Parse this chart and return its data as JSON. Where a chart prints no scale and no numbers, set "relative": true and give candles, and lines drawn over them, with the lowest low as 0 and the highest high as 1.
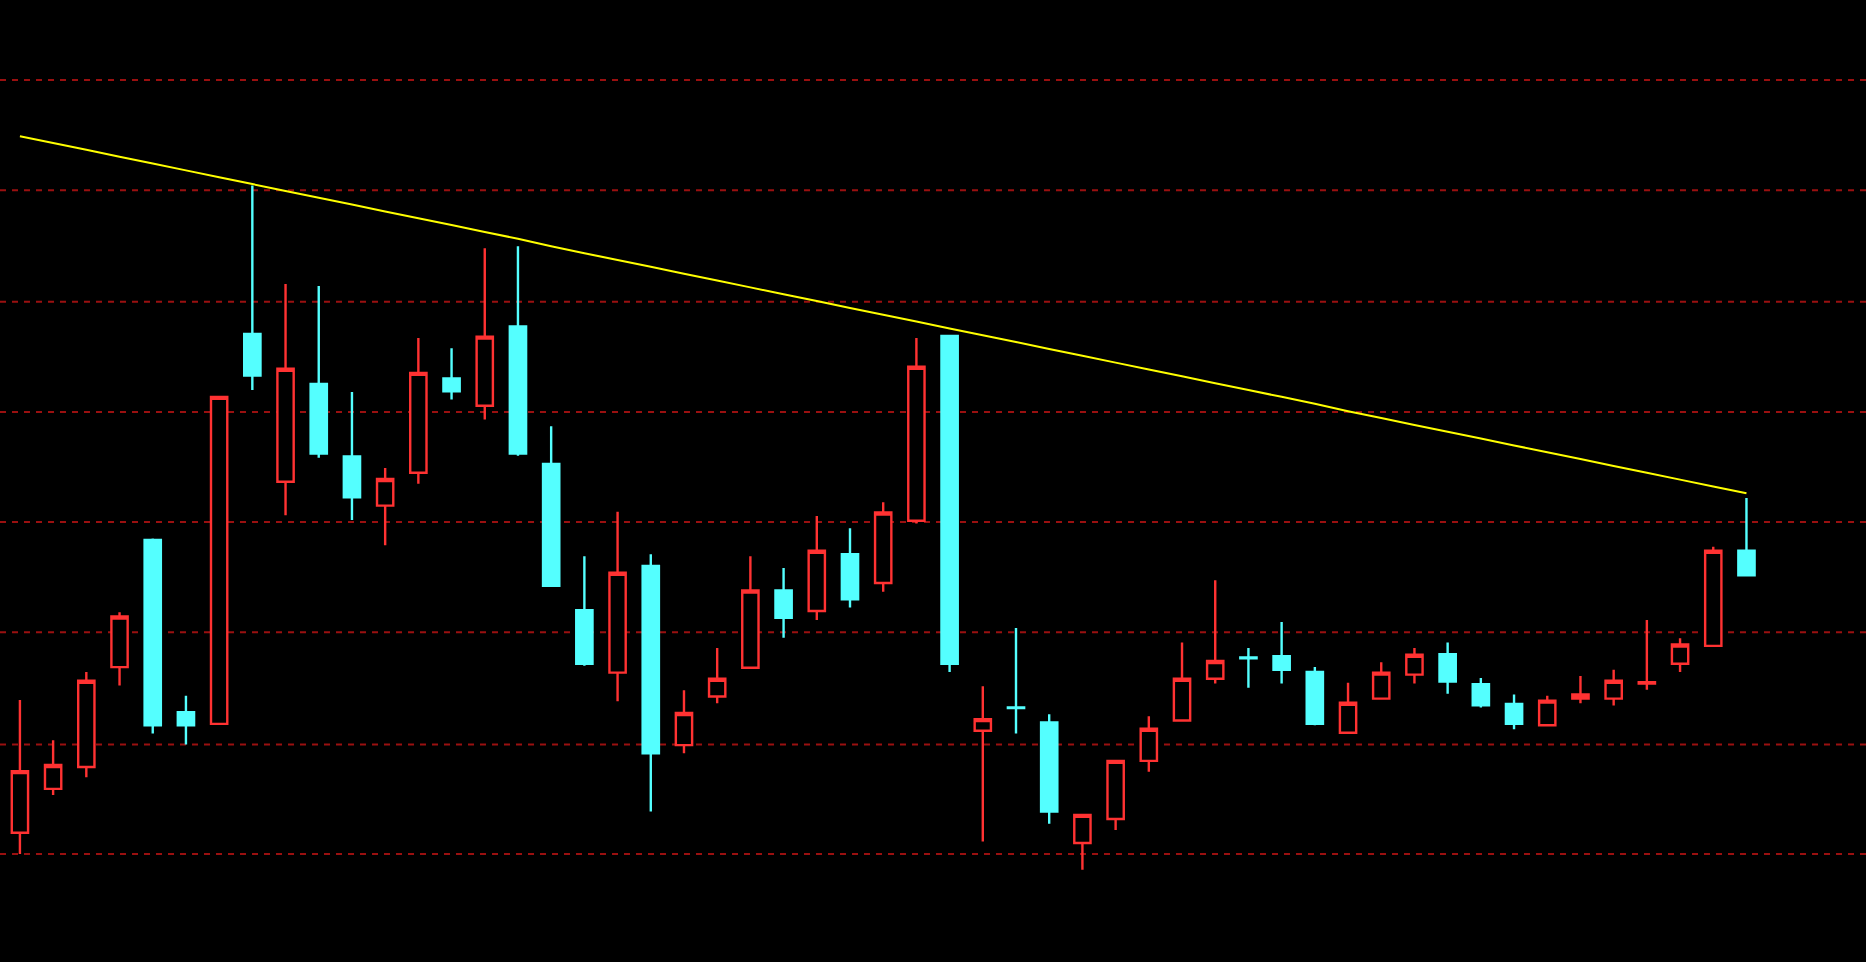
{
  "chart_data": {
    "type": "candlestick",
    "relative": true,
    "tick_labels": false,
    "ref_lines": [
      {
        "axis": "y",
        "value": 1.154,
        "color": "#9a1010",
        "line_style": "dotted"
      },
      {
        "axis": "y",
        "value": 0.993,
        "color": "#9a1010",
        "line_style": "dotted"
      },
      {
        "axis": "y",
        "value": 0.83,
        "color": "#9a1010",
        "line_style": "dotted"
      },
      {
        "axis": "y",
        "value": 0.669,
        "color": "#9a1010",
        "line_style": "dotted"
      },
      {
        "axis": "y",
        "value": 0.508,
        "color": "#9a1010",
        "line_style": "dotted"
      },
      {
        "axis": "y",
        "value": 0.347,
        "color": "#9a1010",
        "line_style": "dotted"
      },
      {
        "axis": "y",
        "value": 0.183,
        "color": "#9a1010",
        "line_style": "dotted"
      },
      {
        "axis": "y",
        "value": 0.023,
        "color": "#9a1010",
        "line_style": "dotted"
      }
    ],
    "categories": [
      null,
      null,
      null,
      null,
      null,
      null,
      null,
      null,
      null,
      null,
      null,
      null,
      null,
      null,
      null,
      null,
      null,
      null,
      null,
      null,
      null,
      null,
      null,
      null,
      null,
      null,
      null,
      null,
      null,
      null,
      null,
      null,
      null,
      null,
      null,
      null,
      null,
      null,
      null,
      null,
      null,
      null,
      null,
      null,
      null,
      null,
      null,
      null,
      null,
      null,
      null,
      null,
      null
    ],
    "series": [
      {
        "ohlc": [
          [
            0.054,
            0.248,
            0.023,
            0.144
          ],
          [
            0.118,
            0.189,
            0.109,
            0.153
          ],
          [
            0.15,
            0.289,
            0.135,
            0.276
          ],
          [
            0.296,
            0.376,
            0.269,
            0.37
          ],
          [
            0.482,
            0.484,
            0.199,
            0.211
          ],
          [
            0.23,
            0.254,
            0.183,
            0.211
          ],
          [
            0.213,
            0.691,
            0.213,
            0.691
          ],
          [
            0.783,
            1,
            0.701,
            0.722
          ],
          [
            0.567,
            0.856,
            0.518,
            0.732
          ],
          [
            0.71,
            0.853,
            0.602,
            0.608
          ],
          [
            0.604,
            0.698,
            0.511,
            0.544
          ],
          [
            0.532,
            0.587,
            0.474,
            0.571
          ],
          [
            0.58,
            0.777,
            0.564,
            0.726
          ],
          [
            0.718,
            0.762,
            0.687,
            0.699
          ],
          [
            0.678,
            0.908,
            0.658,
            0.779
          ],
          [
            0.794,
            0.911,
            0.605,
            0.608
          ],
          [
            0.593,
            0.648,
            0.415,
            0.415
          ],
          [
            0.379,
            0.458,
            0.298,
            0.301
          ],
          [
            0.288,
            0.523,
            0.246,
            0.434
          ],
          [
            0.444,
            0.461,
            0.085,
            0.17
          ],
          [
            0.182,
            0.262,
            0.17,
            0.229
          ],
          [
            0.253,
            0.324,
            0.243,
            0.279
          ],
          [
            0.295,
            0.458,
            0.295,
            0.408
          ],
          [
            0.408,
            0.441,
            0.339,
            0.368
          ],
          [
            0.378,
            0.517,
            0.365,
            0.466
          ],
          [
            0.461,
            0.499,
            0.383,
            0.395
          ],
          [
            0.419,
            0.537,
            0.406,
            0.522
          ],
          [
            0.51,
            0.777,
            0.506,
            0.735
          ],
          [
            0.78,
            0.78,
            0.289,
            0.301
          ],
          [
            0.203,
            0.268,
            0.041,
            0.22
          ],
          [
            0.237,
            0.353,
            0.199,
            0.236
          ],
          [
            0.215,
            0.227,
            0.067,
            0.085
          ],
          [
            0.039,
            0.08,
            0,
            0.08
          ],
          [
            0.074,
            0.159,
            0.058,
            0.159
          ],
          [
            0.159,
            0.224,
            0.143,
            0.206
          ],
          [
            0.218,
            0.332,
            0.218,
            0.279
          ],
          [
            0.279,
            0.423,
            0.272,
            0.305
          ],
          [
            0.31,
            0.324,
            0.266,
            0.309
          ],
          [
            0.312,
            0.362,
            0.272,
            0.292
          ],
          [
            0.289,
            0.296,
            0.211,
            0.213
          ],
          [
            0.2,
            0.273,
            0.199,
            0.244
          ],
          [
            0.25,
            0.303,
            0.25,
            0.288
          ],
          [
            0.285,
            0.324,
            0.272,
            0.314
          ],
          [
            0.315,
            0.332,
            0.257,
            0.275
          ],
          [
            0.271,
            0.28,
            0.237,
            0.24
          ],
          [
            0.242,
            0.256,
            0.205,
            0.213
          ],
          [
            0.211,
            0.254,
            0.211,
            0.247
          ],
          [
            0.25,
            0.283,
            0.243,
            0.256
          ],
          [
            0.25,
            0.292,
            0.24,
            0.276
          ],
          [
            0.272,
            0.365,
            0.263,
            0.274
          ],
          [
            0.301,
            0.338,
            0.289,
            0.329
          ],
          [
            0.327,
            0.472,
            0.327,
            0.466
          ],
          [
            0.466,
            0.543,
            0.43,
            0.43
          ]
        ],
        "colors": [
          "#ff3232",
          "#ff3232",
          "#ff3232",
          "#ff3232",
          "#54ffff",
          "#54ffff",
          "#ff3232",
          "#54ffff",
          "#ff3232",
          "#54ffff",
          "#54ffff",
          "#ff3232",
          "#ff3232",
          "#54ffff",
          "#ff3232",
          "#54ffff",
          "#54ffff",
          "#54ffff",
          "#ff3232",
          "#54ffff",
          "#ff3232",
          "#ff3232",
          "#ff3232",
          "#54ffff",
          "#ff3232",
          "#54ffff",
          "#ff3232",
          "#ff3232",
          "#54ffff",
          "#ff3232",
          "#54ffff",
          "#54ffff",
          "#ff3232",
          "#ff3232",
          "#ff3232",
          "#ff3232",
          "#ff3232",
          "#54ffff",
          "#54ffff",
          "#54ffff",
          "#ff3232",
          "#ff3232",
          "#ff3232",
          "#54ffff",
          "#54ffff",
          "#54ffff",
          "#ff3232",
          "#ff3232",
          "#ff3232",
          "#ff3232",
          "#ff3232",
          "#ff3232",
          "#54ffff"
        ]
      },
      {
        "type": "line",
        "values": [
          1.072,
          1.062,
          1.052,
          1.042,
          1.032,
          1.022,
          1.012,
          1.002,
          0.992,
          0.982,
          0.972,
          0.962,
          0.952,
          0.942,
          0.932,
          0.922,
          0.911,
          0.901,
          0.891,
          0.881,
          0.871,
          0.861,
          0.851,
          0.841,
          0.831,
          0.821,
          0.811,
          0.801,
          0.791,
          0.781,
          0.771,
          0.761,
          0.751,
          0.741,
          0.731,
          0.721,
          0.711,
          0.701,
          0.691,
          0.681,
          0.67,
          0.66,
          0.65,
          0.64,
          0.63,
          0.62,
          0.61,
          0.6,
          0.59,
          0.58,
          0.57,
          0.56,
          0.55
        ],
        "color": "#ffff00"
      }
    ]
  }
}
